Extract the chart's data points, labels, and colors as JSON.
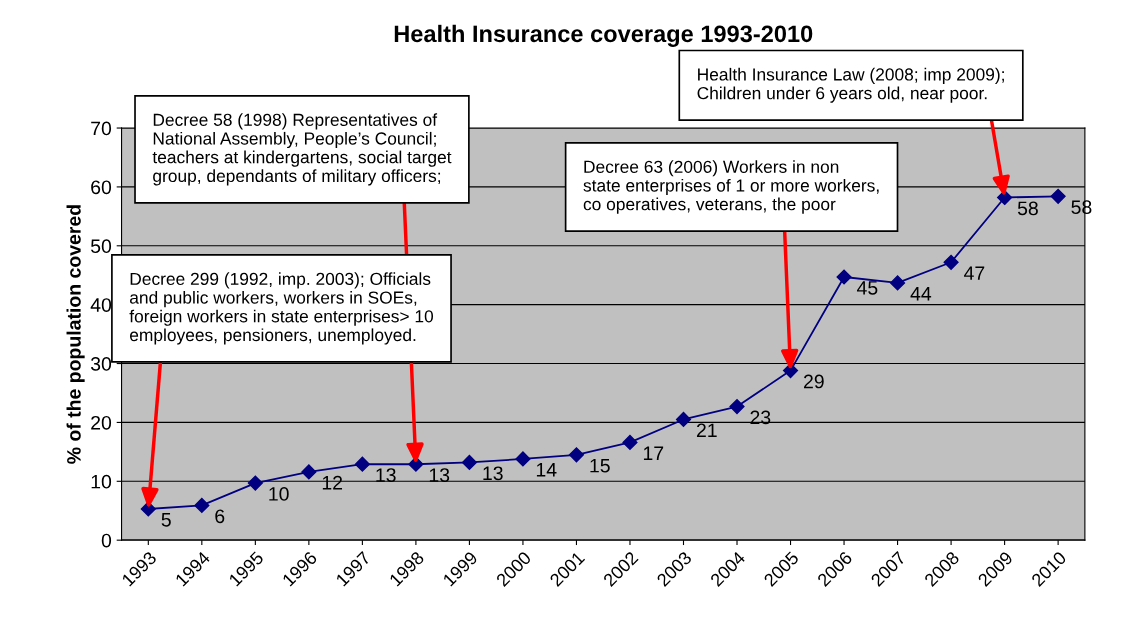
{
  "chart_data": {
    "type": "line",
    "title": "Health Insurance coverage 1993-2010",
    "ylabel": "% of the population covered",
    "categories": [
      "1993",
      "1994",
      "1995",
      "1996",
      "1997",
      "1998",
      "1999",
      "2000",
      "2001",
      "2002",
      "2003",
      "2004",
      "2005",
      "2006",
      "2007",
      "2008",
      "2009",
      "2010"
    ],
    "series": [
      {
        "color": "#000080",
        "values": [
          5.3,
          5.9,
          9.7,
          11.6,
          12.9,
          12.9,
          13.2,
          13.8,
          14.5,
          16.6,
          20.5,
          22.7,
          28.8,
          44.7,
          43.7,
          47.2,
          58.2,
          58.4
        ],
        "value_labels": [
          "5",
          "6",
          "10",
          "12",
          "13",
          "13",
          "13",
          "14",
          "15",
          "17",
          "21",
          "23",
          "29",
          "45",
          "44",
          "47",
          "58",
          "58"
        ]
      }
    ],
    "ylim": [
      0,
      70
    ],
    "yticks": [
      0,
      10,
      20,
      30,
      40,
      50,
      60,
      70
    ],
    "grid": "y",
    "marker": "diamond",
    "line_style": "solid",
    "annotations": [
      {
        "text": "Decree 299 (1992, imp. 2003); Officials\nand public workers, workers in SOEs,\nforeign workers in state enterprises> 10\nemployees, pensioners, unemployed.",
        "x": "1993",
        "y": 5.3
      },
      {
        "text": "Decree 58 (1998) Representatives of\nNational Assembly, People’s Council;\nteachers at kindergartens, social target\ngroup, dependants of military officers;",
        "x": "1998",
        "y": 12.9
      },
      {
        "text": "Decree 63 (2006) Workers in non\nstate enterprises of 1 or more workers,\nco operatives, veterans, the poor",
        "x": "2005",
        "y": 28.8
      },
      {
        "text": "Health Insurance Law (2008; imp 2009);\nChildren under 6 years old, near poor.",
        "x": "2009",
        "y": 58.3
      }
    ]
  }
}
